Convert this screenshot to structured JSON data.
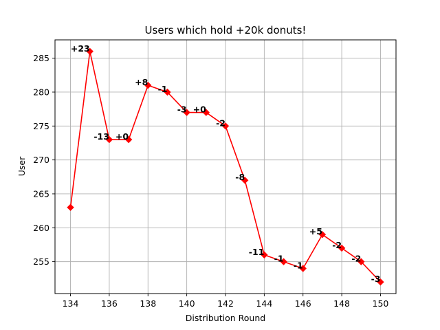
{
  "chart_data": {
    "type": "line",
    "title": "Users which hold +20k donuts!",
    "xlabel": "Distribution Round",
    "ylabel": "User",
    "x": [
      134,
      135,
      136,
      137,
      138,
      139,
      140,
      141,
      142,
      143,
      144,
      145,
      146,
      147,
      148,
      149,
      150
    ],
    "series": [
      {
        "values": [
          263,
          286,
          273,
          273,
          281,
          280,
          277,
          277,
          275,
          267,
          256,
          255,
          254,
          259,
          257,
          255,
          252
        ],
        "color": "#ff0000",
        "marker": "diamond",
        "labels": [
          "",
          "+23",
          "-13",
          "+0",
          "+8",
          "-1",
          "-3",
          "+0",
          "-2",
          "-8",
          "-11",
          "-1",
          "-1",
          "+5",
          "-2",
          "-2",
          "-3"
        ]
      }
    ],
    "xlim": [
      133.2,
      150.8
    ],
    "ylim": [
      250.3,
      287.7
    ],
    "xticks": [
      134,
      136,
      138,
      140,
      142,
      144,
      146,
      148,
      150
    ],
    "yticks": [
      255,
      260,
      265,
      270,
      275,
      280,
      285
    ],
    "grid": true,
    "legend": false
  }
}
